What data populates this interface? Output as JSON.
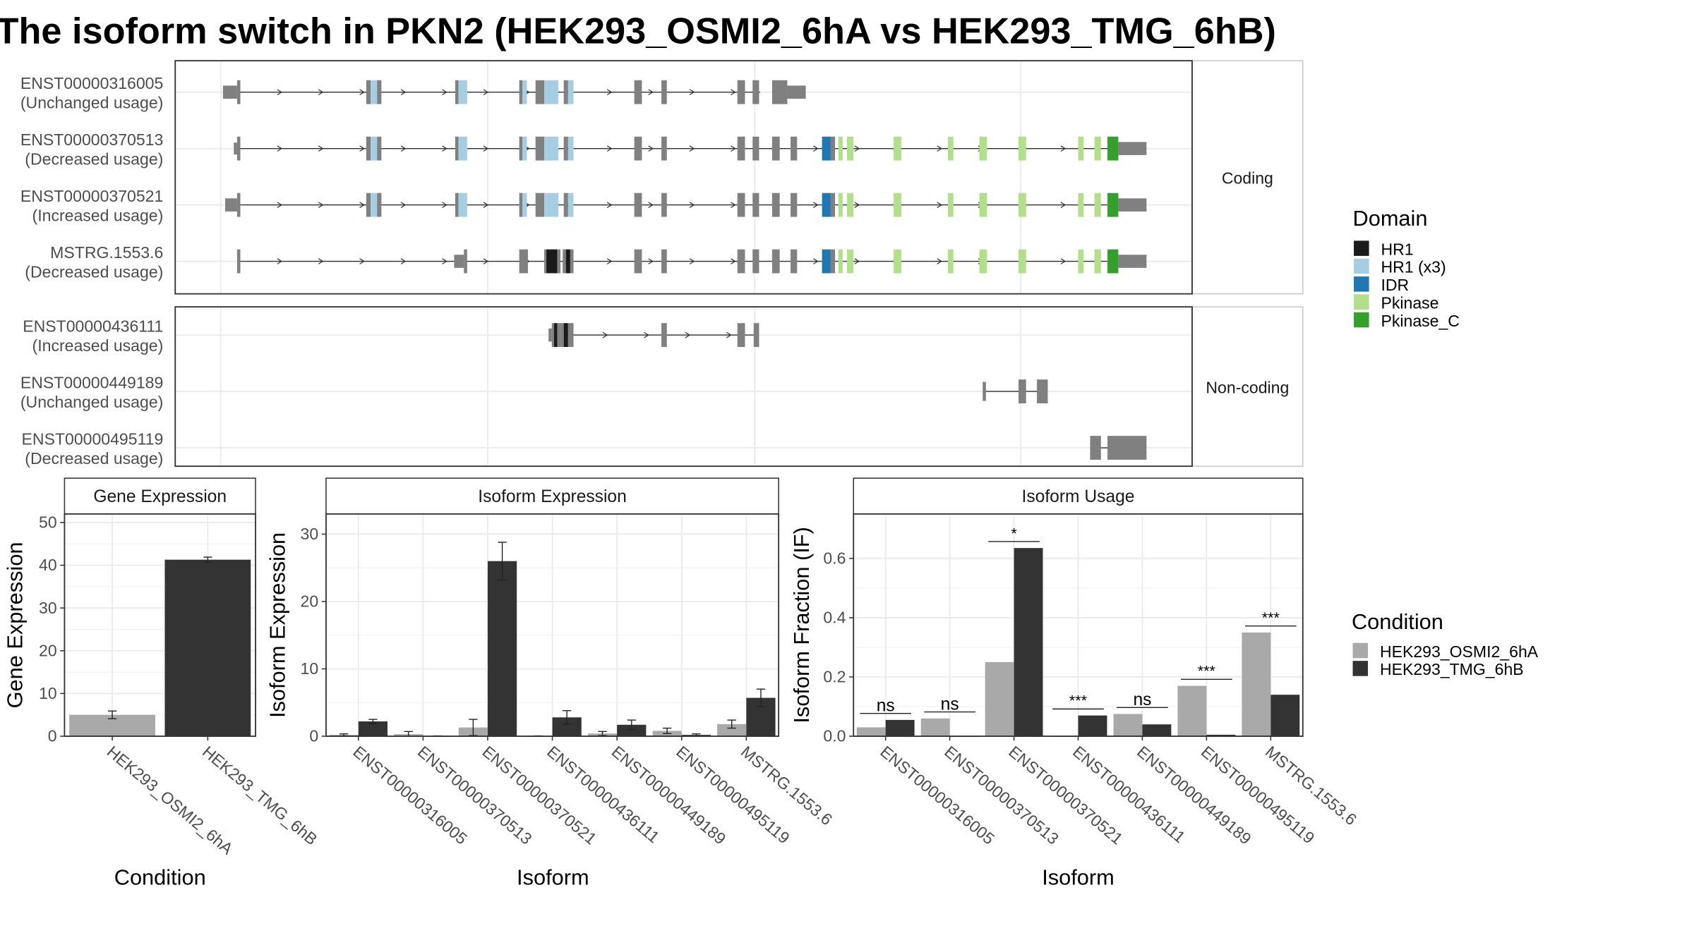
{
  "title": "The isoform switch in PKN2 (HEK293_OSMI2_6hA vs HEK293_TMG_6hB)",
  "colors": {
    "exon": "#808080",
    "condition_a": "#a9a9a9",
    "condition_b": "#333333",
    "domains": {
      "HR1": "#1a1a1a",
      "HR1 (x3)": "#a6cee3",
      "IDR": "#1f78b4",
      "Pkinase": "#b2df8a",
      "Pkinase_C": "#33a02c"
    }
  },
  "structure": {
    "coding_label": "Coding",
    "noncoding_label": "Non-coding",
    "coding": [
      {
        "id": "ENST00000316005",
        "usage": "(Unchanged usage)",
        "line": [
          220,
          700
        ],
        "exons": [
          [
            205,
            218,
            "exon",
            0.55
          ],
          [
            218,
            221,
            "exon",
            1
          ],
          [
            337,
            341,
            "exon",
            1
          ],
          [
            341,
            347,
            "HR1 (x3)",
            1
          ],
          [
            347,
            351,
            "exon",
            1
          ],
          [
            419,
            422,
            "exon",
            1
          ],
          [
            422,
            430,
            "HR1 (x3)",
            1
          ],
          [
            478,
            481,
            "exon",
            1
          ],
          [
            481,
            485,
            "HR1 (x3)",
            1
          ],
          [
            493,
            501,
            "exon",
            1
          ],
          [
            501,
            514,
            "HR1 (x3)",
            1
          ],
          [
            519,
            523,
            "exon",
            1
          ],
          [
            523,
            528,
            "HR1 (x3)",
            1
          ],
          [
            584,
            591,
            "exon",
            1
          ],
          [
            609,
            614,
            "exon",
            1
          ],
          [
            679,
            686,
            "exon",
            1
          ],
          [
            693,
            699,
            "exon",
            1
          ],
          [
            711,
            725,
            "exon",
            1
          ],
          [
            725,
            742,
            "exon",
            0.55
          ]
        ]
      },
      {
        "id": "ENST00000370513",
        "usage": "(Decreased usage)",
        "line": [
          220,
          1020
        ],
        "exons": [
          [
            215,
            218,
            "exon",
            0.5
          ],
          [
            218,
            221,
            "exon",
            1
          ],
          [
            337,
            341,
            "exon",
            1
          ],
          [
            341,
            347,
            "HR1 (x3)",
            1
          ],
          [
            347,
            351,
            "exon",
            1
          ],
          [
            419,
            422,
            "exon",
            1
          ],
          [
            422,
            430,
            "HR1 (x3)",
            1
          ],
          [
            478,
            481,
            "exon",
            1
          ],
          [
            481,
            485,
            "HR1 (x3)",
            1
          ],
          [
            493,
            501,
            "exon",
            1
          ],
          [
            501,
            514,
            "HR1 (x3)",
            1
          ],
          [
            519,
            523,
            "exon",
            1
          ],
          [
            523,
            528,
            "HR1 (x3)",
            1
          ],
          [
            584,
            591,
            "exon",
            1
          ],
          [
            609,
            614,
            "exon",
            1
          ],
          [
            679,
            686,
            "exon",
            1
          ],
          [
            693,
            699,
            "exon",
            1
          ],
          [
            711,
            718,
            "exon",
            1
          ],
          [
            728,
            734,
            "exon",
            1
          ],
          [
            757,
            765,
            "IDR",
            1
          ],
          [
            765,
            769,
            "exon",
            1
          ],
          [
            772,
            776,
            "Pkinase",
            1
          ],
          [
            780,
            786,
            "Pkinase",
            1
          ],
          [
            823,
            830,
            "Pkinase",
            1
          ],
          [
            873,
            878,
            "Pkinase",
            1
          ],
          [
            902,
            909,
            "Pkinase",
            1
          ],
          [
            938,
            945,
            "Pkinase",
            1
          ],
          [
            993,
            998,
            "Pkinase",
            1
          ],
          [
            1008,
            1014,
            "Pkinase",
            1
          ],
          [
            1020,
            1030,
            "Pkinase_C",
            1
          ],
          [
            1030,
            1056,
            "exon",
            0.55
          ]
        ]
      },
      {
        "id": "ENST00000370521",
        "usage": "(Increased usage)",
        "line": [
          220,
          1020
        ],
        "exons": [
          [
            207,
            218,
            "exon",
            0.55
          ],
          [
            218,
            221,
            "exon",
            1
          ],
          [
            337,
            341,
            "exon",
            1
          ],
          [
            341,
            347,
            "HR1 (x3)",
            1
          ],
          [
            347,
            351,
            "exon",
            1
          ],
          [
            419,
            422,
            "exon",
            1
          ],
          [
            422,
            430,
            "HR1 (x3)",
            1
          ],
          [
            478,
            481,
            "exon",
            1
          ],
          [
            481,
            485,
            "HR1 (x3)",
            1
          ],
          [
            493,
            501,
            "exon",
            1
          ],
          [
            501,
            514,
            "HR1 (x3)",
            1
          ],
          [
            519,
            523,
            "exon",
            1
          ],
          [
            523,
            528,
            "HR1 (x3)",
            1
          ],
          [
            584,
            591,
            "exon",
            1
          ],
          [
            609,
            614,
            "exon",
            1
          ],
          [
            679,
            686,
            "exon",
            1
          ],
          [
            693,
            699,
            "exon",
            1
          ],
          [
            711,
            718,
            "exon",
            1
          ],
          [
            728,
            734,
            "exon",
            1
          ],
          [
            757,
            765,
            "IDR",
            1
          ],
          [
            765,
            769,
            "exon",
            1
          ],
          [
            772,
            776,
            "Pkinase",
            1
          ],
          [
            780,
            786,
            "Pkinase",
            1
          ],
          [
            823,
            830,
            "Pkinase",
            1
          ],
          [
            873,
            878,
            "Pkinase",
            1
          ],
          [
            902,
            909,
            "Pkinase",
            1
          ],
          [
            938,
            945,
            "Pkinase",
            1
          ],
          [
            993,
            998,
            "Pkinase",
            1
          ],
          [
            1008,
            1014,
            "Pkinase",
            1
          ],
          [
            1020,
            1030,
            "Pkinase_C",
            1
          ],
          [
            1030,
            1056,
            "exon",
            0.55
          ]
        ]
      },
      {
        "id": "MSTRG.1553.6",
        "usage": "(Decreased usage)",
        "line": [
          220,
          1020
        ],
        "exons": [
          [
            218,
            221,
            "exon",
            1
          ],
          [
            418,
            427,
            "exon",
            0.55
          ],
          [
            427,
            430,
            "exon",
            1
          ],
          [
            478,
            486,
            "exon",
            1
          ],
          [
            501,
            503,
            "exon",
            1
          ],
          [
            503,
            513,
            "HR1",
            1
          ],
          [
            513,
            516,
            "exon",
            1
          ],
          [
            518,
            521,
            "exon",
            1
          ],
          [
            521,
            525,
            "HR1",
            1
          ],
          [
            525,
            528,
            "exon",
            1
          ],
          [
            584,
            591,
            "exon",
            1
          ],
          [
            609,
            614,
            "exon",
            1
          ],
          [
            679,
            686,
            "exon",
            1
          ],
          [
            693,
            699,
            "exon",
            1
          ],
          [
            711,
            718,
            "exon",
            1
          ],
          [
            728,
            734,
            "exon",
            1
          ],
          [
            757,
            765,
            "IDR",
            1
          ],
          [
            765,
            769,
            "exon",
            1
          ],
          [
            772,
            776,
            "Pkinase",
            1
          ],
          [
            780,
            786,
            "Pkinase",
            1
          ],
          [
            823,
            830,
            "Pkinase",
            1
          ],
          [
            873,
            878,
            "Pkinase",
            1
          ],
          [
            902,
            909,
            "Pkinase",
            1
          ],
          [
            938,
            945,
            "Pkinase",
            1
          ],
          [
            993,
            998,
            "Pkinase",
            1
          ],
          [
            1008,
            1014,
            "Pkinase",
            1
          ],
          [
            1020,
            1030,
            "Pkinase_C",
            1
          ],
          [
            1030,
            1056,
            "exon",
            0.55
          ]
        ]
      }
    ],
    "noncoding": [
      {
        "id": "ENST00000436111",
        "usage": "(Increased usage)",
        "line": [
          520,
          697
        ],
        "exons": [
          [
            505,
            508,
            "exon",
            0.55
          ],
          [
            508,
            510,
            "exon",
            1
          ],
          [
            510,
            513,
            "HR1",
            1
          ],
          [
            513,
            516,
            "exon",
            1
          ],
          [
            516,
            519,
            "exon",
            1
          ],
          [
            519,
            523,
            "HR1",
            1
          ],
          [
            523,
            528,
            "exon",
            1
          ],
          [
            609,
            614,
            "exon",
            1
          ],
          [
            679,
            686,
            "exon",
            1
          ],
          [
            694,
            699,
            "exon",
            1
          ]
        ]
      },
      {
        "id": "ENST00000449189",
        "usage": "(Unchanged usage)",
        "line": [
          906,
          960
        ],
        "exons": [
          [
            905,
            908,
            "exon",
            0.8
          ],
          [
            938,
            945,
            "exon",
            1
          ],
          [
            955,
            965,
            "exon",
            1
          ]
        ]
      },
      {
        "id": "ENST00000495119",
        "usage": "(Decreased usage)",
        "line": [
          1004,
          1054
        ],
        "exons": [
          [
            1004,
            1014,
            "exon",
            1
          ],
          [
            1020,
            1056,
            "exon",
            1
          ]
        ]
      }
    ]
  },
  "legend_domain": {
    "title": "Domain",
    "items": [
      "HR1",
      "HR1 (x3)",
      "IDR",
      "Pkinase",
      "Pkinase_C"
    ]
  },
  "legend_condition": {
    "title": "Condition",
    "items": [
      "HEK293_OSMI2_6hA",
      "HEK293_TMG_6hB"
    ]
  },
  "chart_data": [
    {
      "type": "bar",
      "title": "Gene Expression",
      "xlabel": "Condition",
      "ylabel": "Gene Expression",
      "ylim": [
        0,
        52
      ],
      "yticks": [
        0,
        10,
        20,
        30,
        40,
        50
      ],
      "categories": [
        "HEK293_OSMI2_6hA",
        "HEK293_TMG_6hB"
      ],
      "series": [
        {
          "values": [
            5.0,
            41.3
          ],
          "errors": [
            0.9,
            0.6
          ]
        }
      ]
    },
    {
      "type": "bar",
      "title": "Isoform Expression",
      "xlabel": "Isoform",
      "ylabel": "Isoform Expression",
      "ylim": [
        0,
        33
      ],
      "yticks": [
        0,
        10,
        20,
        30
      ],
      "categories": [
        "ENST00000316005",
        "ENST00000370513",
        "ENST00000370521",
        "ENST00000436111",
        "ENST00000449189",
        "ENST00000495119",
        "MSTRG.1553.6"
      ],
      "series": [
        {
          "name": "HEK293_OSMI2_6hA",
          "values": [
            0.2,
            0.3,
            1.3,
            0.0,
            0.4,
            0.8,
            1.8
          ],
          "errors": [
            0.15,
            0.4,
            1.2,
            0.05,
            0.3,
            0.4,
            0.6
          ]
        },
        {
          "name": "HEK293_TMG_6hB",
          "values": [
            2.2,
            0.0,
            26.0,
            2.8,
            1.7,
            0.2,
            5.7
          ],
          "errors": [
            0.3,
            0.05,
            2.8,
            1.0,
            0.7,
            0.15,
            1.3
          ]
        }
      ]
    },
    {
      "type": "bar",
      "title": "Isoform Usage",
      "xlabel": "Isoform",
      "ylabel": "Isoform Fraction (IF)",
      "ylim": [
        0,
        0.75
      ],
      "yticks": [
        0.0,
        0.2,
        0.4,
        0.6
      ],
      "categories": [
        "ENST00000316005",
        "ENST00000370513",
        "ENST00000370521",
        "ENST00000436111",
        "ENST00000449189",
        "ENST00000495119",
        "MSTRG.1553.6"
      ],
      "series": [
        {
          "name": "HEK293_OSMI2_6hA",
          "values": [
            0.03,
            0.06,
            0.25,
            0.0,
            0.075,
            0.17,
            0.35
          ]
        },
        {
          "name": "HEK293_TMG_6hB",
          "values": [
            0.055,
            0.0,
            0.635,
            0.07,
            0.04,
            0.005,
            0.14
          ]
        }
      ],
      "significance": [
        "ns",
        "ns",
        "*",
        "***",
        "ns",
        "***",
        "***"
      ]
    }
  ]
}
